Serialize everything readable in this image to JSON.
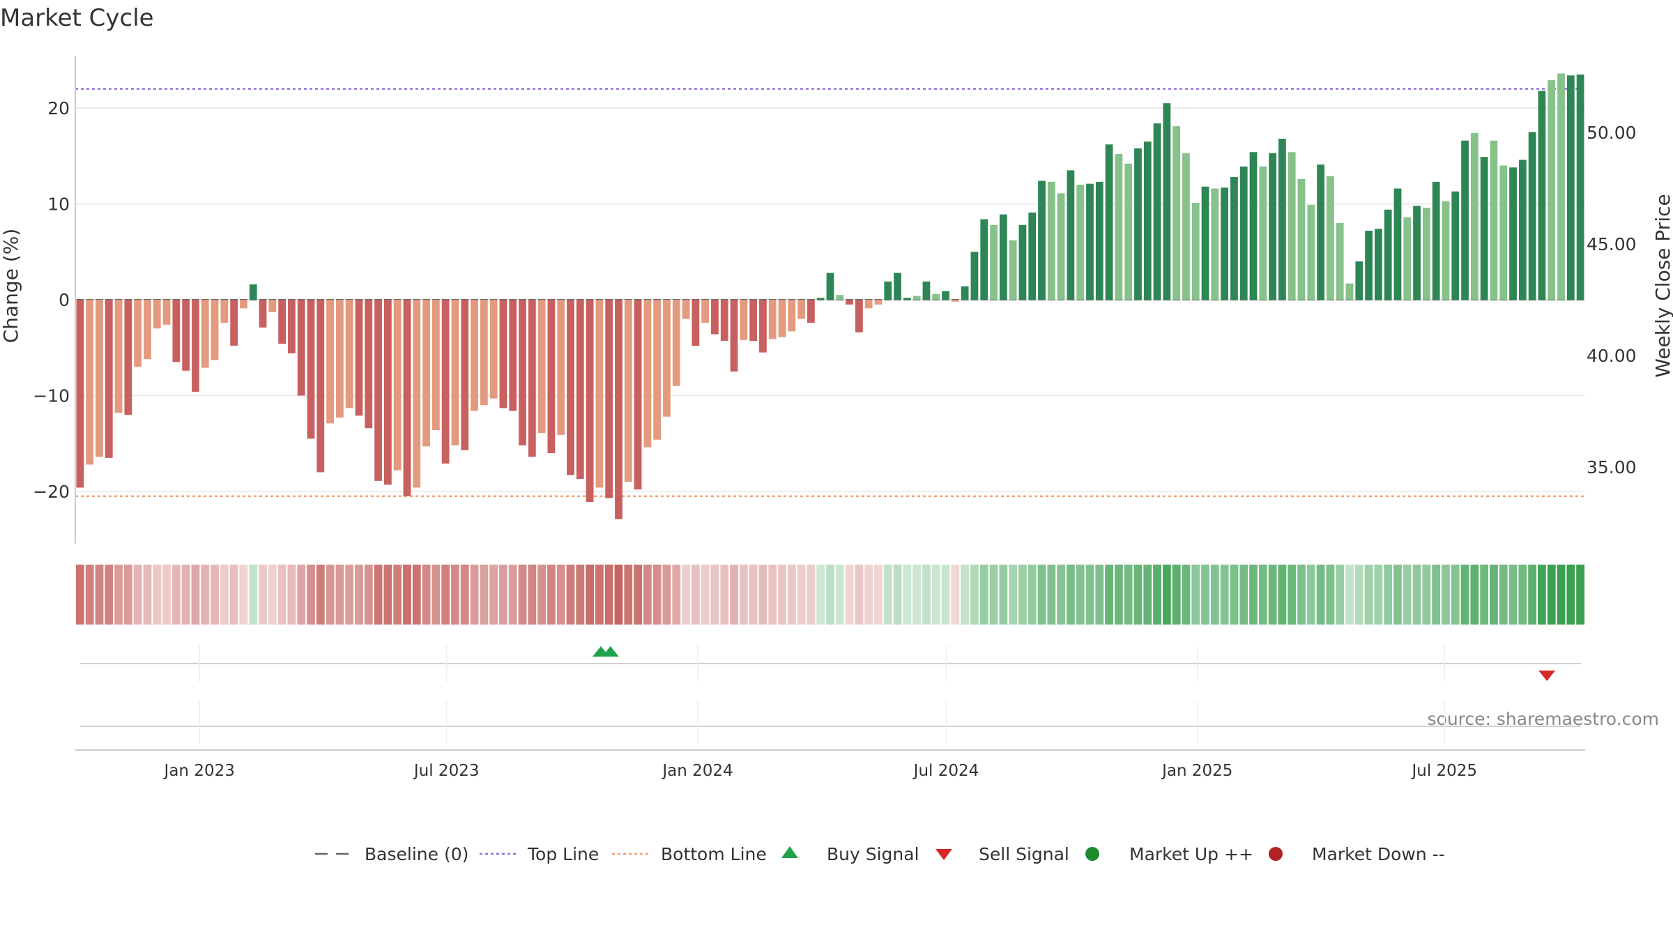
{
  "chart_data": {
    "type": "bar",
    "title": "Market Cycle",
    "xlabel": "",
    "ylabel": "Change (%)",
    "y2label": "Weekly Close Price",
    "ylim": [
      -25,
      25
    ],
    "y_ticks": [
      20,
      10,
      0,
      -10,
      -20
    ],
    "y_tick_labels": [
      "20",
      "10",
      "0",
      "−10",
      "−20"
    ],
    "y2lim": [
      32.5,
      53.5
    ],
    "y2_ticks": [
      50,
      45,
      40,
      35
    ],
    "y2_tick_labels": [
      "50.00",
      "45.00",
      "40.00",
      "35.00"
    ],
    "x_start": "2022-10-02",
    "x_end": "2025-10-12",
    "x_ticks": [
      {
        "date": "2023-01-01",
        "label": "Jan 2023"
      },
      {
        "date": "2023-07-01",
        "label": "Jul 2023"
      },
      {
        "date": "2024-01-01",
        "label": "Jan 2024"
      },
      {
        "date": "2024-07-01",
        "label": "Jul 2024"
      },
      {
        "date": "2025-01-01",
        "label": "Jan 2025"
      },
      {
        "date": "2025-07-01",
        "label": "Jul 2025"
      }
    ],
    "first_week": "2022-10-02",
    "weeks_count": 157,
    "change_pct": [
      -19.6,
      -17.2,
      -16.4,
      -16.5,
      -11.8,
      -12.0,
      -7.0,
      -6.2,
      -3.0,
      -2.6,
      -6.5,
      -7.4,
      -9.6,
      -7.1,
      -6.3,
      -2.4,
      -4.8,
      -0.9,
      1.6,
      -2.9,
      -1.3,
      -4.6,
      -5.6,
      -10.0,
      -14.5,
      -18.0,
      -12.9,
      -12.3,
      -11.3,
      -12.1,
      -13.4,
      -18.9,
      -19.3,
      -17.8,
      -20.5,
      -19.6,
      -15.3,
      -13.6,
      -17.1,
      -15.2,
      -15.7,
      -11.6,
      -11.0,
      -10.3,
      -11.3,
      -11.6,
      -15.2,
      -16.4,
      -13.9,
      -16.0,
      -14.1,
      -18.3,
      -18.7,
      -21.1,
      -19.6,
      -20.7,
      -22.9,
      -19.0,
      -19.8,
      -15.4,
      -14.6,
      -12.2,
      -9.0,
      -2.0,
      -4.8,
      -2.4,
      -3.6,
      -4.3,
      -7.5,
      -4.2,
      -4.3,
      -5.5,
      -4.1,
      -3.9,
      -3.3,
      -2.0,
      -2.4,
      0.2,
      2.8,
      0.5,
      -0.5,
      -3.4,
      -0.9,
      -0.5,
      1.9,
      2.8,
      0.2,
      0.4,
      1.9,
      0.6,
      0.9,
      -0.2,
      1.4,
      5.0,
      8.4,
      7.8,
      8.9,
      6.2,
      7.8,
      9.1,
      12.4,
      12.3,
      11.1,
      13.5,
      12.0,
      12.1,
      12.3,
      16.2,
      15.2,
      14.2,
      15.8,
      16.5,
      18.4,
      20.5,
      18.1,
      15.3,
      10.1,
      11.8,
      11.6,
      11.7,
      12.8,
      13.9,
      15.4,
      13.9,
      15.3,
      16.8,
      15.4,
      12.6,
      9.9,
      14.1,
      12.9,
      8.0,
      1.7,
      4.0,
      7.2,
      7.4,
      9.4,
      11.6,
      8.6,
      9.8,
      9.6,
      12.3,
      10.3,
      11.3,
      16.6,
      17.4,
      14.9,
      16.6,
      14.0,
      13.8,
      14.6,
      17.5,
      21.8,
      22.9,
      23.6,
      23.4,
      23.5
    ],
    "bar_shade": [
      1,
      0,
      0,
      1,
      0,
      1,
      0,
      0,
      0,
      0,
      1,
      1,
      1,
      0,
      0,
      0,
      1,
      0,
      1,
      1,
      0,
      1,
      1,
      1,
      1,
      1,
      0,
      0,
      0,
      1,
      1,
      1,
      1,
      0,
      1,
      0,
      0,
      0,
      1,
      0,
      1,
      0,
      0,
      0,
      1,
      1,
      1,
      1,
      0,
      1,
      0,
      1,
      1,
      1,
      0,
      1,
      1,
      0,
      1,
      0,
      0,
      0,
      0,
      0,
      1,
      0,
      1,
      1,
      1,
      0,
      1,
      1,
      0,
      0,
      0,
      0,
      1,
      1,
      1,
      0,
      1,
      1,
      0,
      0,
      1,
      1,
      1,
      0,
      1,
      0,
      1,
      0,
      1,
      1,
      1,
      0,
      1,
      0,
      1,
      1,
      1,
      0,
      0,
      1,
      0,
      1,
      1,
      1,
      0,
      0,
      1,
      1,
      1,
      1,
      0,
      0,
      0,
      1,
      0,
      1,
      1,
      1,
      1,
      0,
      1,
      1,
      0,
      0,
      0,
      1,
      0,
      0,
      0,
      1,
      1,
      1,
      1,
      1,
      0,
      1,
      0,
      1,
      0,
      1,
      1,
      0,
      1,
      0,
      0,
      1,
      1,
      1,
      1,
      0,
      0,
      1,
      1
    ],
    "baseline": 0,
    "top_line": 22,
    "bottom_line": -20.5,
    "buy_signals": [
      "2023-10-22",
      "2023-10-29"
    ],
    "sell_signals": [
      "2025-09-14"
    ],
    "grid": true,
    "legend_position": "bottom",
    "source": "source: sharemaestro.com",
    "colors": {
      "neg_dark": "#c8605f",
      "neg_light": "#e39a7e",
      "pos_dark": "#2e8656",
      "pos_light": "#86c28a",
      "top_line": "#9370db",
      "bottom_line": "#f0a070",
      "baseline": "#666666",
      "buy": "#22a24a",
      "sell": "#d62728",
      "market_up": "#1e8a2e",
      "market_down": "#b22222",
      "grid": "#e6e6e6",
      "axis": "#cccccc",
      "strip_neg": "#c4625f",
      "strip_pos": "#3aa050"
    },
    "legend": [
      {
        "key": "baseline",
        "label": "Baseline (0)",
        "marker": "dash"
      },
      {
        "key": "top",
        "label": "Top Line",
        "marker": "dot-purple"
      },
      {
        "key": "bottom",
        "label": "Bottom Line",
        "marker": "dot-orange"
      },
      {
        "key": "buy",
        "label": "Buy Signal",
        "marker": "triangle-up"
      },
      {
        "key": "sell",
        "label": "Sell Signal",
        "marker": "triangle-down"
      },
      {
        "key": "up",
        "label": "Market Up ++",
        "marker": "circle-green"
      },
      {
        "key": "down",
        "label": "Market Down --",
        "marker": "circle-red"
      }
    ]
  }
}
